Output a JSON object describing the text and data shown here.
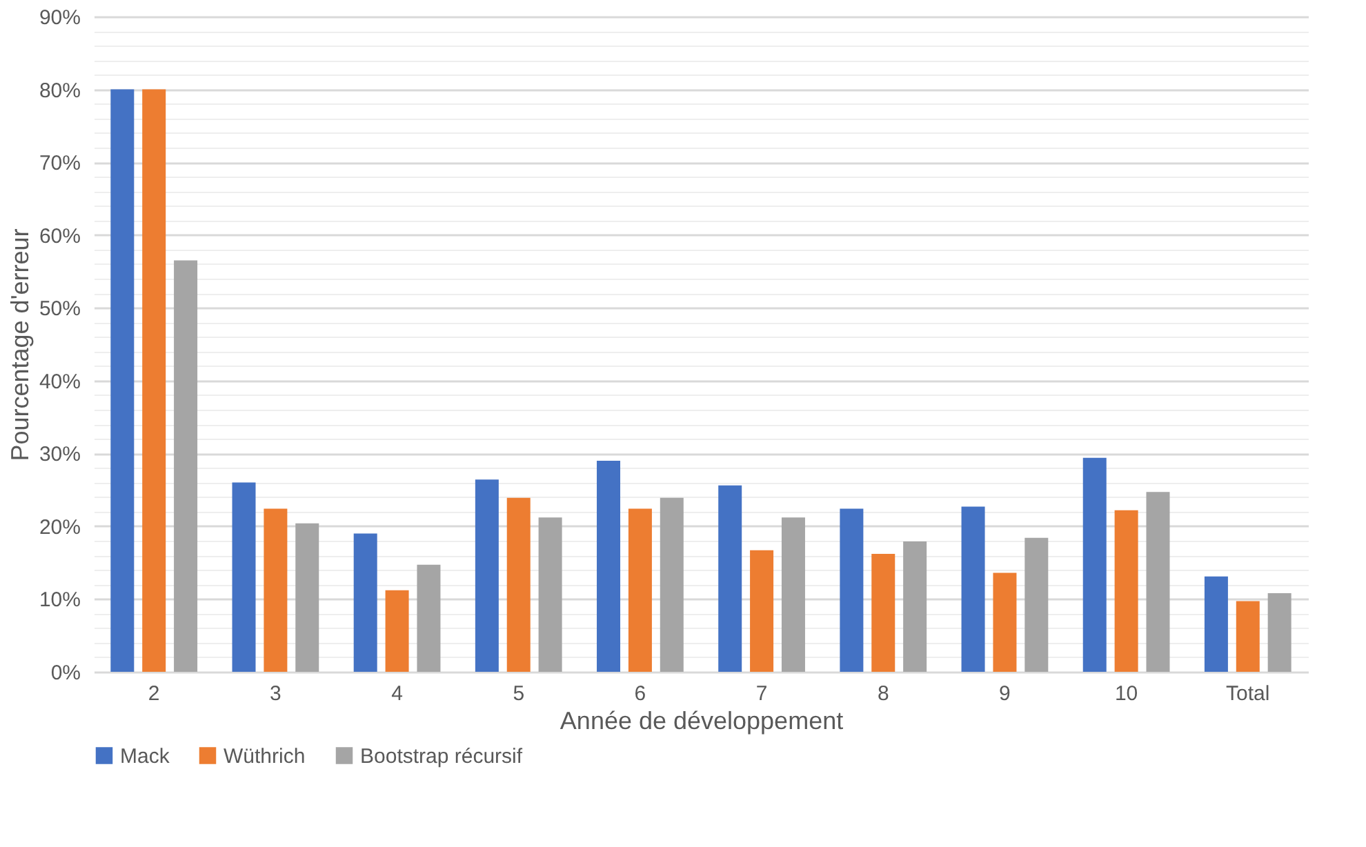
{
  "chart_data": {
    "type": "bar",
    "xlabel": "Année de développement",
    "ylabel": "Pourcentage d'erreur",
    "categories": [
      "2",
      "3",
      "4",
      "5",
      "6",
      "7",
      "8",
      "9",
      "10",
      "Total"
    ],
    "series": [
      {
        "name": "Mack",
        "color": "#4472c4",
        "values": [
          80,
          26,
          19,
          26.4,
          29,
          25.6,
          22.4,
          22.7,
          29.4,
          13.1
        ]
      },
      {
        "name": "Wüthrich",
        "color": "#ed7d31",
        "values": [
          80,
          22.4,
          11.2,
          23.9,
          22.4,
          16.7,
          16.2,
          13.6,
          22.2,
          9.7
        ]
      },
      {
        "name": "Bootstrap récursif",
        "color": "#a5a5a5",
        "values": [
          56.5,
          20.4,
          14.7,
          21.2,
          23.9,
          21.2,
          17.9,
          18.4,
          24.7,
          10.8
        ]
      }
    ],
    "ylim": [
      0,
      90
    ],
    "yticks": [
      {
        "value": 0,
        "label": "0%"
      },
      {
        "value": 2,
        "label": null
      },
      {
        "value": 4,
        "label": null
      },
      {
        "value": 6,
        "label": null
      },
      {
        "value": 8,
        "label": null
      },
      {
        "value": 10,
        "label": "10%"
      },
      {
        "value": 12,
        "label": null
      },
      {
        "value": 14,
        "label": null
      },
      {
        "value": 16,
        "label": null
      },
      {
        "value": 18,
        "label": null
      },
      {
        "value": 20,
        "label": "20%"
      },
      {
        "value": 22,
        "label": null
      },
      {
        "value": 24,
        "label": null
      },
      {
        "value": 26,
        "label": null
      },
      {
        "value": 28,
        "label": null
      },
      {
        "value": 30,
        "label": "30%"
      },
      {
        "value": 32,
        "label": null
      },
      {
        "value": 34,
        "label": null
      },
      {
        "value": 36,
        "label": null
      },
      {
        "value": 38,
        "label": null
      },
      {
        "value": 40,
        "label": "40%"
      },
      {
        "value": 42,
        "label": null
      },
      {
        "value": 44,
        "label": null
      },
      {
        "value": 46,
        "label": null
      },
      {
        "value": 48,
        "label": null
      },
      {
        "value": 50,
        "label": "50%"
      },
      {
        "value": 52,
        "label": null
      },
      {
        "value": 54,
        "label": null
      },
      {
        "value": 56,
        "label": null
      },
      {
        "value": 58,
        "label": null
      },
      {
        "value": 60,
        "label": "60%"
      },
      {
        "value": 62,
        "label": null
      },
      {
        "value": 64,
        "label": null
      },
      {
        "value": 66,
        "label": null
      },
      {
        "value": 68,
        "label": null
      },
      {
        "value": 70,
        "label": "70%"
      },
      {
        "value": 72,
        "label": null
      },
      {
        "value": 74,
        "label": null
      },
      {
        "value": 76,
        "label": null
      },
      {
        "value": 78,
        "label": null
      },
      {
        "value": 80,
        "label": "80%"
      },
      {
        "value": 82,
        "label": null
      },
      {
        "value": 84,
        "label": null
      },
      {
        "value": 86,
        "label": null
      },
      {
        "value": 88,
        "label": null
      },
      {
        "value": 90,
        "label": "90%"
      }
    ],
    "grid": "y",
    "legend": "bottom"
  }
}
